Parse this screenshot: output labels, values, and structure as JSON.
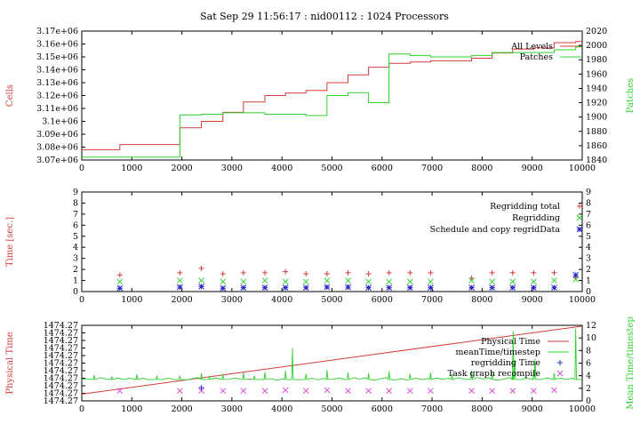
{
  "title": "Sat Sep 29 11:56:17 : nid00112 : 1024 Processors",
  "colors": {
    "red": "#d43c3c",
    "green": "#2fd02f",
    "blue": "#2323c8",
    "purple": "#9b39c9",
    "magenta": "#d447d4"
  },
  "chart_data": [
    {
      "type": "line",
      "ylabel": "Cells",
      "y2label": "Patches",
      "xlim": [
        0,
        10000
      ],
      "ylim": [
        3070000,
        3170000
      ],
      "y2lim": [
        1840,
        2020
      ],
      "xticks": [
        "0",
        "1000",
        "2000",
        "3000",
        "4000",
        "5000",
        "6000",
        "7000",
        "8000",
        "9000",
        "10000"
      ],
      "yticks": [
        "3.07e+06",
        "3.08e+06",
        "3.09e+06",
        "3.1e+06",
        "3.11e+06",
        "3.12e+06",
        "3.13e+06",
        "3.14e+06",
        "3.15e+06",
        "3.16e+06",
        "3.17e+06"
      ],
      "y2ticks": [
        "1840",
        "1860",
        "1880",
        "1900",
        "1920",
        "1940",
        "1960",
        "1980",
        "2000",
        "2020"
      ],
      "legend_position": "top-right",
      "series": [
        {
          "name": "All Levels",
          "axis": "left",
          "color": "#d43c3c",
          "step": true,
          "points": [
            [
              0,
              3078000
            ],
            [
              760,
              3082000
            ],
            [
              1960,
              3095000
            ],
            [
              2390,
              3100000
            ],
            [
              2820,
              3107000
            ],
            [
              3230,
              3115000
            ],
            [
              3660,
              3120000
            ],
            [
              4070,
              3122000
            ],
            [
              4480,
              3124000
            ],
            [
              4900,
              3130000
            ],
            [
              5320,
              3136000
            ],
            [
              5730,
              3142000
            ],
            [
              6140,
              3145000
            ],
            [
              6560,
              3146000
            ],
            [
              6970,
              3147000
            ],
            [
              7790,
              3149000
            ],
            [
              8200,
              3153000
            ],
            [
              8610,
              3156000
            ],
            [
              9030,
              3157000
            ],
            [
              9440,
              3161000
            ],
            [
              9870,
              3162000
            ],
            [
              10000,
              3162000
            ]
          ]
        },
        {
          "name": "Patches",
          "axis": "right",
          "color": "#2fd02f",
          "step": true,
          "points": [
            [
              0,
              1844
            ],
            [
              1960,
              1844
            ],
            [
              1960,
              1903
            ],
            [
              2390,
              1904
            ],
            [
              2820,
              1906
            ],
            [
              3230,
              1906
            ],
            [
              3660,
              1904
            ],
            [
              4070,
              1904
            ],
            [
              4480,
              1902
            ],
            [
              4900,
              1904
            ],
            [
              4900,
              1930
            ],
            [
              5320,
              1934
            ],
            [
              5730,
              1920
            ],
            [
              6140,
              1920
            ],
            [
              6140,
              1988
            ],
            [
              6560,
              1986
            ],
            [
              6970,
              1984
            ],
            [
              7790,
              1986
            ],
            [
              8200,
              1990
            ],
            [
              8610,
              1990
            ],
            [
              9030,
              1990
            ],
            [
              9440,
              1994
            ],
            [
              9870,
              1998
            ],
            [
              10000,
              1998
            ]
          ]
        }
      ]
    },
    {
      "type": "scatter",
      "ylabel": "Time [sec.]",
      "xlim": [
        0,
        10000
      ],
      "ylim": [
        0,
        9
      ],
      "xticks": [
        "0",
        "1000",
        "2000",
        "3000",
        "4000",
        "5000",
        "6000",
        "7000",
        "8000",
        "9000",
        "10000"
      ],
      "yticks": [
        "0",
        "1",
        "2",
        "3",
        "4",
        "5",
        "6",
        "7",
        "8",
        "9"
      ],
      "legend_position": "top-right",
      "series": [
        {
          "name": "Regridding total",
          "marker": "+",
          "color": "#d43c3c",
          "points": [
            [
              760,
              1.5
            ],
            [
              1960,
              1.7
            ],
            [
              2390,
              2.1
            ],
            [
              2820,
              1.6
            ],
            [
              3230,
              1.7
            ],
            [
              3660,
              1.7
            ],
            [
              4070,
              1.8
            ],
            [
              4480,
              1.6
            ],
            [
              4900,
              1.6
            ],
            [
              5320,
              1.7
            ],
            [
              5730,
              1.6
            ],
            [
              6140,
              1.7
            ],
            [
              6560,
              1.7
            ],
            [
              6970,
              1.7
            ],
            [
              7790,
              1.2
            ],
            [
              8200,
              1.7
            ],
            [
              8610,
              1.7
            ],
            [
              9030,
              1.7
            ],
            [
              9440,
              1.7
            ],
            [
              9870,
              1.3
            ]
          ]
        },
        {
          "name": "Regridding",
          "marker": "x",
          "color": "#2fd02f",
          "points": [
            [
              760,
              0.9
            ],
            [
              1960,
              1.0
            ],
            [
              2390,
              1.0
            ],
            [
              2820,
              0.9
            ],
            [
              3230,
              0.9
            ],
            [
              3660,
              1.0
            ],
            [
              4070,
              0.9
            ],
            [
              4480,
              0.9
            ],
            [
              4900,
              1.0
            ],
            [
              5320,
              1.0
            ],
            [
              5730,
              0.9
            ],
            [
              6140,
              0.9
            ],
            [
              6560,
              0.9
            ],
            [
              6970,
              0.9
            ],
            [
              7790,
              1.0
            ],
            [
              8200,
              0.9
            ],
            [
              8610,
              0.9
            ],
            [
              9030,
              0.9
            ],
            [
              9440,
              1.0
            ],
            [
              9870,
              1.1
            ]
          ]
        },
        {
          "name": "Schedule and copy regridData",
          "marker": "*",
          "color": "#2323c8",
          "points": [
            [
              760,
              0.3
            ],
            [
              1960,
              0.4
            ],
            [
              2390,
              0.45
            ],
            [
              2820,
              0.3
            ],
            [
              3230,
              0.35
            ],
            [
              3660,
              0.35
            ],
            [
              4070,
              0.35
            ],
            [
              4480,
              0.35
            ],
            [
              4900,
              0.4
            ],
            [
              5320,
              0.4
            ],
            [
              5730,
              0.35
            ],
            [
              6140,
              0.35
            ],
            [
              6560,
              0.35
            ],
            [
              6970,
              0.35
            ],
            [
              7790,
              0.35
            ],
            [
              8200,
              0.35
            ],
            [
              8610,
              0.35
            ],
            [
              9030,
              0.35
            ],
            [
              9440,
              0.35
            ],
            [
              9870,
              1.5
            ]
          ]
        }
      ]
    },
    {
      "type": "line",
      "ylabel": "Physical Time",
      "y2label": "Mean Time/timestep",
      "xlim": [
        0,
        10000
      ],
      "ylim": [
        0,
        10
      ],
      "y2lim": [
        0,
        12
      ],
      "xticks": [
        "0",
        "1000",
        "2000",
        "3000",
        "4000",
        "5000",
        "6000",
        "7000",
        "8000",
        "9000",
        "10000"
      ],
      "yticks": [
        "1474.27",
        "1474.27",
        "1474.27",
        "1474.27",
        "1474.27",
        "1474.27",
        "1474.27",
        "1474.27",
        "1474.27",
        "1474.27",
        "1474.27"
      ],
      "y2ticks": [
        "0",
        "2",
        "4",
        "6",
        "8",
        "10",
        "12"
      ],
      "legend_position": "top-right",
      "series": [
        {
          "name": "Physical Time",
          "axis": "left",
          "color": "#d43c3c",
          "points": [
            [
              0,
              0.9
            ],
            [
              10000,
              9.9
            ]
          ]
        },
        {
          "name": "meanTime/timestep",
          "axis": "right",
          "color": "#2fd02f",
          "baseline": 3.4,
          "spikes": [
            [
              250,
              4.1
            ],
            [
              600,
              3.9
            ],
            [
              1100,
              4.2
            ],
            [
              1500,
              4.0
            ],
            [
              1960,
              4.0
            ],
            [
              2390,
              4.4
            ],
            [
              2550,
              4.0
            ],
            [
              2820,
              4.3
            ],
            [
              3230,
              4.5
            ],
            [
              3450,
              4.0
            ],
            [
              3660,
              4.6
            ],
            [
              4070,
              4.8
            ],
            [
              4210,
              8.4
            ],
            [
              4480,
              4.3
            ],
            [
              4900,
              4.9
            ],
            [
              5320,
              4.5
            ],
            [
              5730,
              4.4
            ],
            [
              6140,
              4.7
            ],
            [
              6560,
              4.3
            ],
            [
              6970,
              4.5
            ],
            [
              7400,
              4.2
            ],
            [
              7790,
              4.8
            ],
            [
              8200,
              4.5
            ],
            [
              8610,
              4.5
            ],
            [
              8620,
              11.1
            ],
            [
              8650,
              6.5
            ],
            [
              9030,
              4.8
            ],
            [
              9060,
              6.7
            ],
            [
              9440,
              4.4
            ],
            [
              9870,
              11.5
            ]
          ]
        },
        {
          "name": "regridding Time",
          "marker": "+",
          "axis": "right",
          "color": "#2323c8",
          "points": [
            [
              2390,
              2.1
            ]
          ]
        },
        {
          "name": "Task graph recompile",
          "marker": "x",
          "axis": "right",
          "color": "#d447d4",
          "points": [
            [
              760,
              1.6
            ],
            [
              1960,
              1.6
            ],
            [
              2390,
              1.6
            ],
            [
              2820,
              1.6
            ],
            [
              3230,
              1.6
            ],
            [
              3660,
              1.6
            ],
            [
              4070,
              1.7
            ],
            [
              4480,
              1.6
            ],
            [
              4900,
              1.7
            ],
            [
              5320,
              1.6
            ],
            [
              5730,
              1.6
            ],
            [
              6140,
              1.6
            ],
            [
              6560,
              1.6
            ],
            [
              6970,
              1.6
            ],
            [
              7790,
              1.6
            ],
            [
              8200,
              1.6
            ],
            [
              8610,
              1.6
            ],
            [
              9030,
              1.6
            ],
            [
              9440,
              1.7
            ]
          ]
        }
      ]
    }
  ]
}
